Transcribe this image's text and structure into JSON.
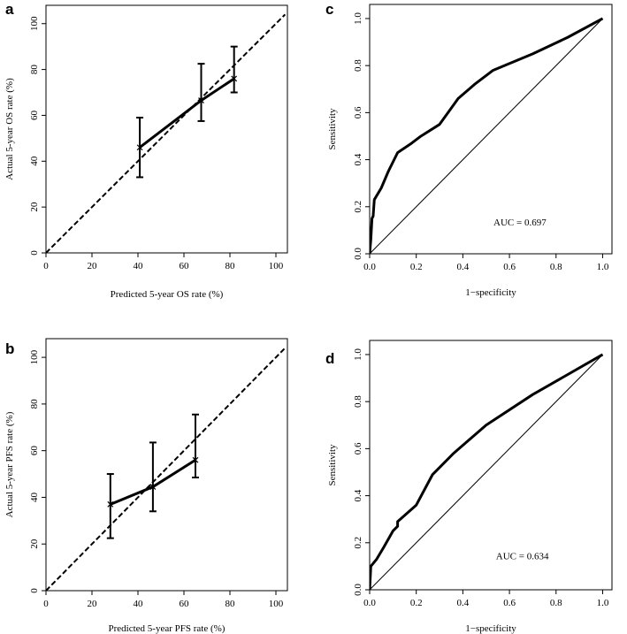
{
  "chart_data": [
    {
      "panel": "a",
      "type": "calibration",
      "xlabel": "Predicted 5-year OS rate (%)",
      "ylabel": "Actual 5-year OS rate (%)",
      "xlim": [
        0,
        105
      ],
      "ylim": [
        0,
        108
      ],
      "xticks": [
        0,
        20,
        40,
        60,
        80,
        100
      ],
      "yticks": [
        0,
        20,
        40,
        60,
        80,
        100
      ],
      "reference_line": {
        "style": "dashed",
        "x": [
          0,
          104
        ],
        "y": [
          0,
          104
        ]
      },
      "calibration_curve": {
        "x": [
          40.8,
          67.5,
          81.8
        ],
        "y": [
          46.0,
          66.5,
          76.0
        ]
      },
      "error_bars": [
        {
          "x": 40.8,
          "y": 46.0,
          "low": 33.0,
          "high": 59.0
        },
        {
          "x": 67.5,
          "y": 66.5,
          "low": 57.5,
          "high": 82.5
        },
        {
          "x": 81.8,
          "y": 76.0,
          "low": 70.0,
          "high": 90.0
        }
      ]
    },
    {
      "panel": "b",
      "type": "calibration",
      "xlabel": "Predicted 5-year PFS rate (%)",
      "ylabel": "Actual 5-year PFS rate (%)",
      "xlim": [
        0,
        105
      ],
      "ylim": [
        0,
        108
      ],
      "xticks": [
        0,
        20,
        40,
        60,
        80,
        100
      ],
      "yticks": [
        0,
        20,
        40,
        60,
        80,
        100
      ],
      "reference_line": {
        "style": "dashed",
        "x": [
          0,
          104
        ],
        "y": [
          0,
          104
        ]
      },
      "calibration_curve": {
        "x": [
          28.0,
          46.5,
          65.0
        ],
        "y": [
          37.0,
          44.5,
          56.0
        ]
      },
      "error_bars": [
        {
          "x": 28.0,
          "y": 37.0,
          "low": 22.5,
          "high": 50.0
        },
        {
          "x": 46.5,
          "y": 44.5,
          "low": 34.0,
          "high": 63.5
        },
        {
          "x": 65.0,
          "y": 56.0,
          "low": 48.5,
          "high": 75.5
        }
      ]
    },
    {
      "panel": "c",
      "type": "line",
      "xlabel": "1−specificity",
      "ylabel": "Sensitivity",
      "xlim": [
        0,
        1.04
      ],
      "ylim": [
        0,
        1.06
      ],
      "xticks": [
        "0.0",
        "0.2",
        "0.4",
        "0.6",
        "0.8",
        "1.0"
      ],
      "yticks": [
        "0.0",
        "0.2",
        "0.4",
        "0.6",
        "0.8",
        "1.0"
      ],
      "annotation": "AUC = 0.697",
      "reference_line": {
        "x": [
          0,
          1
        ],
        "y": [
          0,
          1
        ]
      },
      "roc_curve": {
        "x": [
          0.0,
          0.005,
          0.01,
          0.015,
          0.02,
          0.05,
          0.08,
          0.12,
          0.18,
          0.22,
          0.3,
          0.38,
          0.45,
          0.53,
          0.7,
          0.85,
          1.0
        ],
        "y": [
          0.0,
          0.06,
          0.15,
          0.16,
          0.23,
          0.28,
          0.35,
          0.43,
          0.47,
          0.5,
          0.55,
          0.66,
          0.72,
          0.78,
          0.85,
          0.92,
          1.0
        ]
      }
    },
    {
      "panel": "d",
      "type": "line",
      "xlabel": "1−specificity",
      "ylabel": "Sensitivity",
      "xlim": [
        0,
        1.04
      ],
      "ylim": [
        0,
        1.06
      ],
      "xticks": [
        "0.0",
        "0.2",
        "0.4",
        "0.6",
        "0.8",
        "1.0"
      ],
      "yticks": [
        "0.0",
        "0.2",
        "0.4",
        "0.6",
        "0.8",
        "1.0"
      ],
      "annotation": "AUC = 0.634",
      "reference_line": {
        "x": [
          0,
          1
        ],
        "y": [
          0,
          1
        ]
      },
      "roc_curve": {
        "x": [
          0.0,
          0.005,
          0.03,
          0.06,
          0.1,
          0.12,
          0.12,
          0.2,
          0.27,
          0.36,
          0.5,
          0.7,
          1.0
        ],
        "y": [
          0.0,
          0.1,
          0.13,
          0.18,
          0.25,
          0.27,
          0.29,
          0.36,
          0.49,
          0.58,
          0.7,
          0.83,
          1.0
        ]
      }
    }
  ]
}
